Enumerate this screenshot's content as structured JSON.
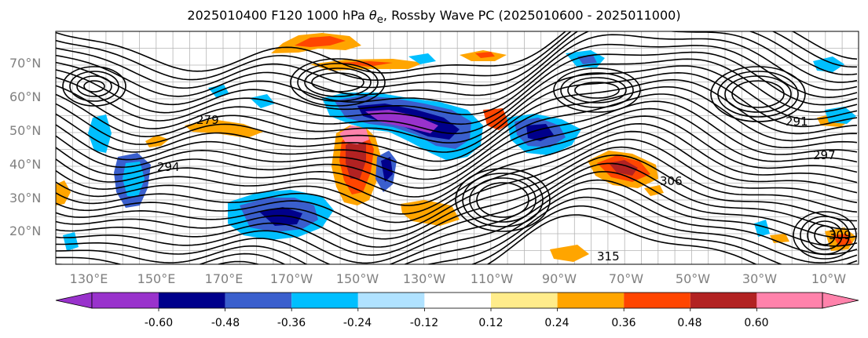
{
  "title": {
    "prefix": "2025010400 F120 1000 hPa ",
    "symbol": "θ",
    "symbol_sub": "e",
    "suffix": ", Rossby Wave PC (2025010600 - 2025011000)"
  },
  "map": {
    "lat_labels": [
      "70°N",
      "60°N",
      "50°N",
      "40°N",
      "30°N",
      "20°N"
    ],
    "lon_labels": [
      "130°E",
      "150°E",
      "170°E",
      "170°W",
      "150°W",
      "130°W",
      "110°W",
      "90°W",
      "70°W",
      "50°W",
      "30°W",
      "10°W"
    ],
    "contour_labels": [
      "279",
      "294",
      "291",
      "306",
      "297",
      "309",
      "315"
    ]
  },
  "colorbar": {
    "colors": [
      "#9932CC",
      "#00008B",
      "#3A5FCD",
      "#00BFFF",
      "#B0E2FF",
      "#FFFFFF",
      "#FFEC8B",
      "#FFA500",
      "#FF4500",
      "#B22222",
      "#FF82AB"
    ],
    "tick_labels": [
      "-0.60",
      "-0.48",
      "-0.36",
      "-0.24",
      "-0.12",
      "0.12",
      "0.24",
      "0.36",
      "0.48",
      "0.60"
    ]
  }
}
